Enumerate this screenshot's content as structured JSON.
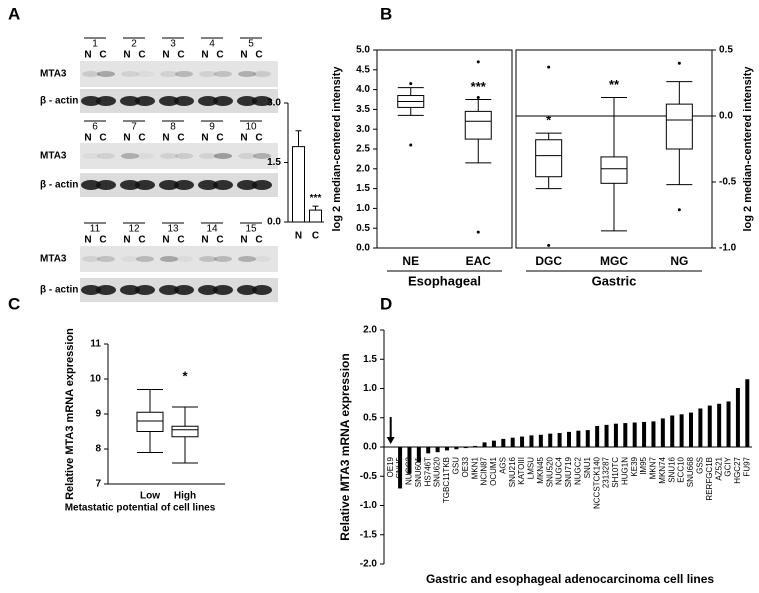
{
  "figure": {
    "panel_labels": [
      "A",
      "B",
      "C",
      "D"
    ],
    "blot": {
      "lanes": [
        "1",
        "2",
        "3",
        "4",
        "5",
        "6",
        "7",
        "8",
        "9",
        "10",
        "11",
        "12",
        "13",
        "14",
        "15"
      ],
      "lane_labels": [
        "N",
        "C"
      ],
      "rows": [
        "MTA3",
        "β - actin"
      ]
    }
  },
  "chart_data": [
    {
      "type": "bar",
      "categories": [
        "N",
        "C"
      ],
      "values": [
        1.9,
        0.3
      ],
      "errors": [
        0.4,
        0.1
      ],
      "color": "#ffffff",
      "ylim": [
        0,
        3
      ],
      "yticks": [
        {
          "value": 0,
          "label": "0.0"
        },
        {
          "value": 1.5,
          "label": "1.5"
        },
        {
          "value": 3,
          "label": "3.0"
        }
      ],
      "annotations": [
        null,
        "***"
      ]
    },
    {
      "type": "box",
      "ylabel": "log 2 median-centered intensity",
      "y2label": "log 2 median-centered intensity",
      "ylim": [
        0,
        5
      ],
      "yticks": [
        {
          "value": 0,
          "label": "0.0"
        },
        {
          "value": 0.5,
          "label": "0.5"
        },
        {
          "value": 1,
          "label": "1.0"
        },
        {
          "value": 1.5,
          "label": "1.5"
        },
        {
          "value": 2,
          "label": "2.0"
        },
        {
          "value": 2.5,
          "label": "2.5"
        },
        {
          "value": 3,
          "label": "3.0"
        },
        {
          "value": 3.5,
          "label": "3.5"
        },
        {
          "value": 4,
          "label": "4.0"
        },
        {
          "value": 4.5,
          "label": "4.5"
        },
        {
          "value": 5,
          "label": "5.0"
        }
      ],
      "y2lim": [
        -1,
        0.5
      ],
      "y2ticks": [
        {
          "value": -1,
          "label": "-1.0"
        },
        {
          "value": -0.5,
          "label": "-0.5"
        },
        {
          "value": 0,
          "label": "0.0"
        },
        {
          "value": 0.5,
          "label": "0.5"
        }
      ],
      "groups": [
        {
          "name": "Esophageal",
          "axis": "y",
          "categories": [
            "NE",
            "EAC"
          ],
          "annotations": [
            null,
            "***"
          ],
          "boxes": [
            {
              "whislo": 3.35,
              "q1": 3.55,
              "med": 3.7,
              "q3": 3.85,
              "whishi": 4.05,
              "fliers": [
                4.15,
                2.6
              ]
            },
            {
              "whislo": 2.15,
              "q1": 2.75,
              "med": 3.2,
              "q3": 3.45,
              "whishi": 3.75,
              "fliers": [
                4.7,
                3.8,
                0.4
              ]
            }
          ]
        },
        {
          "name": "Gastric",
          "axis": "y2",
          "hline": 0,
          "categories": [
            "DGC",
            "MGC",
            "NG"
          ],
          "annotations": [
            "*",
            "**",
            null
          ],
          "boxes": [
            {
              "whislo": -0.55,
              "q1": -0.46,
              "med": -0.3,
              "q3": -0.18,
              "whishi": -0.13,
              "fliers": [
                0.37,
                -0.98
              ]
            },
            {
              "whislo": -0.87,
              "q1": -0.51,
              "med": -0.4,
              "q3": -0.31,
              "whishi": 0.14,
              "fliers": []
            },
            {
              "whislo": -0.52,
              "q1": -0.25,
              "med": -0.03,
              "q3": 0.09,
              "whishi": 0.26,
              "fliers": [
                0.4,
                -0.71
              ]
            }
          ]
        }
      ]
    },
    {
      "type": "box",
      "ylabel": "Relative MTA3 mRNA expression",
      "xlabel": "Metastatic potential of cell lines",
      "ylim": [
        7,
        11
      ],
      "yticks": [
        7,
        8,
        9,
        10,
        11
      ],
      "groups": [
        {
          "categories": [
            "Low",
            "High"
          ],
          "annotations": [
            null,
            "*"
          ],
          "axis": "y",
          "boxes": [
            {
              "whislo": 7.9,
              "q1": 8.5,
              "med": 8.8,
              "q3": 9.05,
              "whishi": 9.7,
              "fliers": []
            },
            {
              "whislo": 7.6,
              "q1": 8.35,
              "med": 8.55,
              "q3": 8.65,
              "whishi": 9.2,
              "fliers": []
            }
          ]
        }
      ]
    },
    {
      "type": "bar",
      "ylabel": "Relative MTA3 mRNA expression",
      "xlabel": "Gastric and esophageal adenocarcinoma cell lines",
      "color": "#000000",
      "categories": [
        "OE19",
        "SNU5",
        "NUGC3",
        "SNU601",
        "HS746T",
        "SNU620",
        "TGBC11TKB",
        "GSU",
        "OE33",
        "MKN1",
        "NCIN87",
        "OCUM1",
        "AGS",
        "SNU216",
        "KATOIII",
        "LMSU",
        "MKN45",
        "SNU520",
        "NUGC4",
        "SNU719",
        "NUGC2",
        "SNU1",
        "NCCSTCK140",
        "2313287",
        "SH10TC",
        "HUG1N",
        "KE39",
        "IM95",
        "MKN7",
        "MKN74",
        "SNU16",
        "ECC10",
        "SNU668",
        "GSS",
        "RERFGC1B",
        "AZ521",
        "GCIY",
        "HGC27",
        "FU97"
      ],
      "values": [
        0,
        -0.7,
        -0.45,
        -0.25,
        -0.1,
        -0.08,
        -0.05,
        -0.03,
        -0.01,
        0.01,
        0.07,
        0.1,
        0.13,
        0.15,
        0.17,
        0.19,
        0.2,
        0.22,
        0.23,
        0.25,
        0.27,
        0.28,
        0.35,
        0.37,
        0.39,
        0.4,
        0.41,
        0.42,
        0.43,
        0.48,
        0.53,
        0.55,
        0.58,
        0.65,
        0.7,
        0.73,
        0.77,
        1.0,
        1.15
      ],
      "ylim": [
        -2,
        2
      ],
      "yticks": [
        {
          "value": -2,
          "label": "-2.0"
        },
        {
          "value": -1.5,
          "label": "-1.5"
        },
        {
          "value": -1,
          "label": "-1.0"
        },
        {
          "value": -0.5,
          "label": "-0.5"
        },
        {
          "value": 0,
          "label": "0.0"
        },
        {
          "value": 0.5,
          "label": "0.5"
        },
        {
          "value": 1,
          "label": "1.0"
        },
        {
          "value": 1.5,
          "label": "1.5"
        },
        {
          "value": 2,
          "label": "2.0"
        }
      ]
    }
  ]
}
